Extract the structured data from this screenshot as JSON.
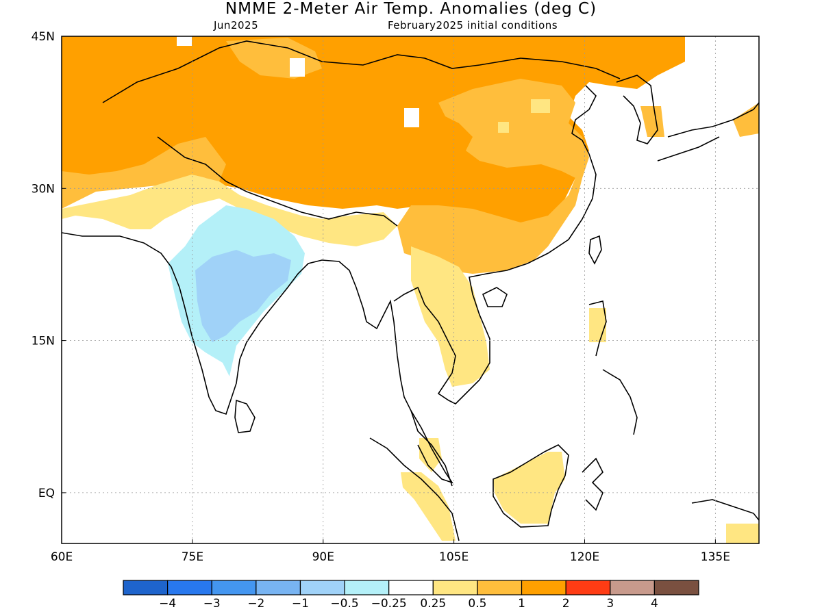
{
  "header": {
    "title": "NMME 2-Meter Air Temp. Anomalies (deg C)",
    "subtitle_left": "Jun2025",
    "subtitle_right": "February2025 initial conditions"
  },
  "map": {
    "lon_range": [
      60,
      140
    ],
    "lat_range": [
      -5,
      45
    ],
    "lat_ticks": [
      {
        "value": 45,
        "label": "45N"
      },
      {
        "value": 30,
        "label": "30N"
      },
      {
        "value": 15,
        "label": "15N"
      },
      {
        "value": 0,
        "label": "EQ"
      }
    ],
    "lon_ticks": [
      {
        "value": 60,
        "label": "60E"
      },
      {
        "value": 75,
        "label": "75E"
      },
      {
        "value": 90,
        "label": "90E"
      },
      {
        "value": 105,
        "label": "105E"
      },
      {
        "value": 120,
        "label": "120E"
      },
      {
        "value": 135,
        "label": "135E"
      }
    ],
    "gridlines": "dotted",
    "land_outline_color": "#000000"
  },
  "colorbar": {
    "labels": [
      "-4",
      "-3",
      "-2",
      "-1",
      "-0.5",
      "-0.25",
      "0.25",
      "0.5",
      "1",
      "2",
      "3",
      "4"
    ],
    "colors": [
      "#1e64cc",
      "#2878ee",
      "#4496f0",
      "#78b4f2",
      "#a0d2f8",
      "#b4f0f8",
      "#ffffff",
      "#ffe682",
      "#ffbe3c",
      "#ffa000",
      "#ff3c14",
      "#c89a8c",
      "#7a5040"
    ]
  }
}
